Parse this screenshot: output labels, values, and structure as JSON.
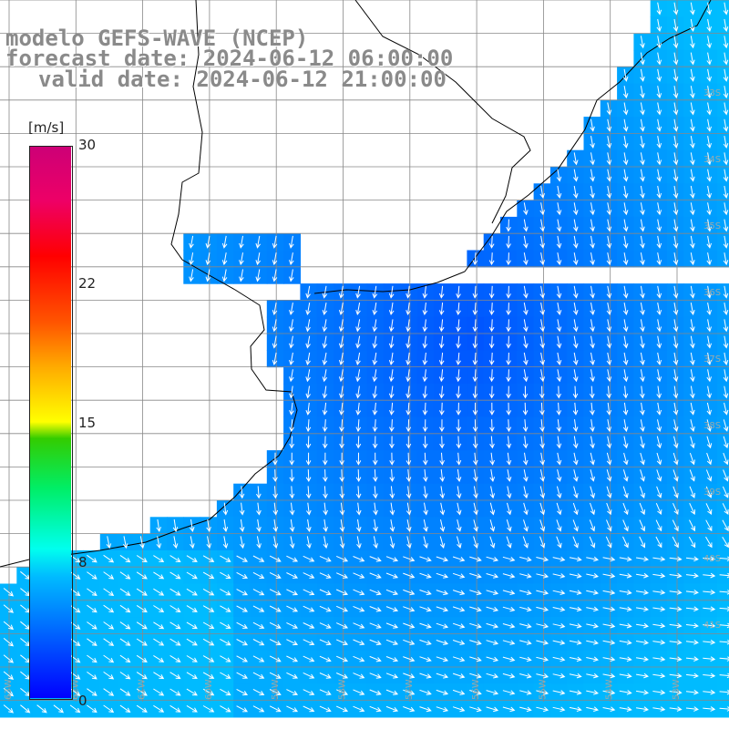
{
  "title": {
    "line1": "modelo GEFS-WAVE (NCEP)",
    "line2": "forecast date: 2024-06-12 06:00:00",
    "line3": "valid date: 2024-06-12 21:00:00"
  },
  "legend": {
    "unit": "[m/s]",
    "ticks": [
      "30",
      "22",
      "15",
      "8",
      "0"
    ],
    "colors": [
      "#0000ff",
      "#0066ff",
      "#00bbff",
      "#00ffee",
      "#00ee66",
      "#33cc00",
      "#ffff00",
      "#ffaa00",
      "#ff5500",
      "#ff0000",
      "#ee0066",
      "#cc0077"
    ]
  },
  "map": {
    "type": "wind-field",
    "variable": "wind speed",
    "colors": {
      "land": "#ffffff",
      "coastline": "#000000",
      "grid": "#888888",
      "arrow": "#ffffff"
    },
    "lat_labels": [
      "33S",
      "34S",
      "35S",
      "36S",
      "37S",
      "38S",
      "39S",
      "40S",
      "41S"
    ],
    "lon_labels": [
      "63W",
      "62W",
      "61W",
      "60W",
      "59W",
      "58W",
      "57W",
      "56W",
      "55W",
      "54W",
      "53W"
    ]
  }
}
